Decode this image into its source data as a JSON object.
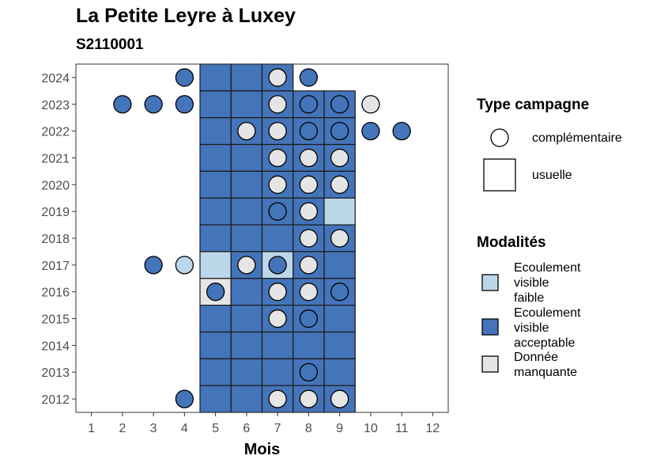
{
  "title": "La Petite Leyre à Luxey",
  "subtitle": "S2110001",
  "chart_data": {
    "type": "heatmap",
    "xlabel": "Mois",
    "ylabel": "",
    "x_ticks": [
      1,
      2,
      3,
      4,
      5,
      6,
      7,
      8,
      9,
      10,
      11,
      12
    ],
    "y_ticks": [
      2012,
      2013,
      2014,
      2015,
      2016,
      2017,
      2018,
      2019,
      2020,
      2021,
      2022,
      2023,
      2024
    ],
    "xlim": [
      0.5,
      12.5
    ],
    "ylim": [
      2011.5,
      2024.5
    ],
    "grid": false,
    "colors": {
      "faible": "#bcd7e9",
      "acceptable": "#4474b9",
      "manquante": "#e5e5e5"
    },
    "usuelle": [
      {
        "year": 2024,
        "months": [
          5,
          6,
          7
        ],
        "mod": "acceptable"
      },
      {
        "year": 2023,
        "months": [
          5,
          6,
          7,
          8,
          9
        ],
        "mod": "acceptable"
      },
      {
        "year": 2022,
        "months": [
          5,
          6,
          7,
          8,
          9
        ],
        "mod": "acceptable"
      },
      {
        "year": 2021,
        "months": [
          5,
          6,
          7,
          8,
          9
        ],
        "mod": "acceptable"
      },
      {
        "year": 2020,
        "months": [
          5,
          6,
          7,
          8,
          9
        ],
        "mod": "acceptable"
      },
      {
        "year": 2019,
        "months": [
          5,
          6,
          7,
          8
        ],
        "mod": "acceptable"
      },
      {
        "year": 2019,
        "months": [
          9
        ],
        "mod": "faible"
      },
      {
        "year": 2018,
        "months": [
          5,
          6,
          7,
          8,
          9
        ],
        "mod": "acceptable"
      },
      {
        "year": 2017,
        "months": [
          5
        ],
        "mod": "faible"
      },
      {
        "year": 2017,
        "months": [
          6
        ],
        "mod": "acceptable"
      },
      {
        "year": 2017,
        "months": [
          7
        ],
        "mod": "faible"
      },
      {
        "year": 2017,
        "months": [
          8,
          9
        ],
        "mod": "acceptable"
      },
      {
        "year": 2016,
        "months": [
          5
        ],
        "mod": "manquante"
      },
      {
        "year": 2016,
        "months": [
          6,
          7,
          8,
          9
        ],
        "mod": "acceptable"
      },
      {
        "year": 2015,
        "months": [
          5,
          6,
          7,
          8,
          9
        ],
        "mod": "acceptable"
      },
      {
        "year": 2014,
        "months": [
          5,
          6,
          7,
          8,
          9
        ],
        "mod": "acceptable"
      },
      {
        "year": 2013,
        "months": [
          5,
          6,
          7,
          8,
          9
        ],
        "mod": "acceptable"
      },
      {
        "year": 2012,
        "months": [
          5,
          6,
          7,
          8,
          9
        ],
        "mod": "acceptable"
      }
    ],
    "complementaire": [
      {
        "year": 2024,
        "month": 4,
        "mod": "acceptable"
      },
      {
        "year": 2024,
        "month": 7,
        "mod": "manquante"
      },
      {
        "year": 2024,
        "month": 8,
        "mod": "acceptable"
      },
      {
        "year": 2023,
        "month": 2,
        "mod": "acceptable"
      },
      {
        "year": 2023,
        "month": 3,
        "mod": "acceptable"
      },
      {
        "year": 2023,
        "month": 4,
        "mod": "acceptable"
      },
      {
        "year": 2023,
        "month": 7,
        "mod": "manquante"
      },
      {
        "year": 2023,
        "month": 8,
        "mod": "acceptable"
      },
      {
        "year": 2023,
        "month": 9,
        "mod": "acceptable"
      },
      {
        "year": 2023,
        "month": 10,
        "mod": "manquante"
      },
      {
        "year": 2022,
        "month": 6,
        "mod": "manquante"
      },
      {
        "year": 2022,
        "month": 7,
        "mod": "manquante"
      },
      {
        "year": 2022,
        "month": 8,
        "mod": "acceptable"
      },
      {
        "year": 2022,
        "month": 9,
        "mod": "acceptable"
      },
      {
        "year": 2022,
        "month": 10,
        "mod": "acceptable"
      },
      {
        "year": 2022,
        "month": 11,
        "mod": "acceptable"
      },
      {
        "year": 2021,
        "month": 7,
        "mod": "manquante"
      },
      {
        "year": 2021,
        "month": 8,
        "mod": "manquante"
      },
      {
        "year": 2021,
        "month": 9,
        "mod": "manquante"
      },
      {
        "year": 2020,
        "month": 7,
        "mod": "manquante"
      },
      {
        "year": 2020,
        "month": 8,
        "mod": "manquante"
      },
      {
        "year": 2020,
        "month": 9,
        "mod": "manquante"
      },
      {
        "year": 2019,
        "month": 7,
        "mod": "acceptable"
      },
      {
        "year": 2019,
        "month": 8,
        "mod": "manquante"
      },
      {
        "year": 2018,
        "month": 8,
        "mod": "manquante"
      },
      {
        "year": 2018,
        "month": 9,
        "mod": "manquante"
      },
      {
        "year": 2017,
        "month": 3,
        "mod": "acceptable"
      },
      {
        "year": 2017,
        "month": 4,
        "mod": "faible"
      },
      {
        "year": 2017,
        "month": 6,
        "mod": "manquante"
      },
      {
        "year": 2017,
        "month": 7,
        "mod": "acceptable"
      },
      {
        "year": 2017,
        "month": 8,
        "mod": "manquante"
      },
      {
        "year": 2016,
        "month": 5,
        "mod": "acceptable"
      },
      {
        "year": 2016,
        "month": 7,
        "mod": "manquante"
      },
      {
        "year": 2016,
        "month": 8,
        "mod": "manquante"
      },
      {
        "year": 2016,
        "month": 9,
        "mod": "acceptable"
      },
      {
        "year": 2015,
        "month": 7,
        "mod": "manquante"
      },
      {
        "year": 2015,
        "month": 8,
        "mod": "acceptable"
      },
      {
        "year": 2013,
        "month": 8,
        "mod": "acceptable"
      },
      {
        "year": 2012,
        "month": 4,
        "mod": "acceptable"
      },
      {
        "year": 2012,
        "month": 7,
        "mod": "manquante"
      },
      {
        "year": 2012,
        "month": 8,
        "mod": "manquante"
      },
      {
        "year": 2012,
        "month": 9,
        "mod": "manquante"
      }
    ]
  },
  "legend": {
    "type_title": "Type campagne",
    "type_items": [
      "complémentaire",
      "usuelle"
    ],
    "mod_title": "Modalités",
    "mod_items": [
      {
        "key": "faible",
        "lines": [
          "Ecoulement",
          "visible",
          "faible"
        ]
      },
      {
        "key": "acceptable",
        "lines": [
          "Ecoulement",
          "visible",
          "acceptable"
        ]
      },
      {
        "key": "manquante",
        "lines": [
          "Donnée",
          "manquante"
        ]
      }
    ]
  }
}
